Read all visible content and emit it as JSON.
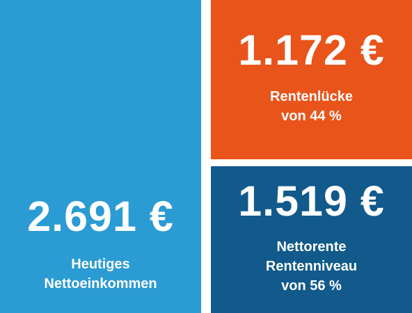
{
  "tiles": {
    "income": {
      "amount": "2.691 €",
      "caption": [
        "Heutiges",
        "Nettoeinkommen"
      ],
      "color": "#2b9bd3"
    },
    "gap": {
      "amount": "1.172 €",
      "caption": [
        "Rentenlücke",
        "von 44 %"
      ],
      "color": "#e8541a"
    },
    "pension": {
      "amount": "1.519 €",
      "caption": [
        "Nettorente",
        "Rentenniveau",
        "von 56 %"
      ],
      "color": "#115a8b"
    }
  }
}
